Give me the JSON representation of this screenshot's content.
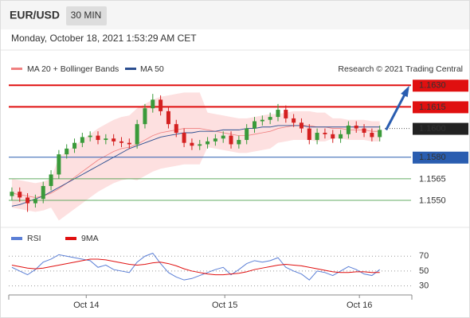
{
  "header": {
    "symbol": "EUR/USD",
    "timeframe": "30 MIN",
    "timestamp": "Monday, October 18, 2021 1:53:29 AM CET"
  },
  "chart_data": {
    "type": "candlestick",
    "credit": "Research © 2021 Trading Central",
    "up_color": "#3a9a3a",
    "down_color": "#d42020",
    "ylim": [
      1.1534,
      1.1639
    ],
    "xlim": [
      -0.4,
      51
    ],
    "xticks": [
      {
        "value": 9.5,
        "label": "Oct 14"
      },
      {
        "value": 27.2,
        "label": "Oct 15"
      },
      {
        "value": 44.4,
        "label": "Oct 16"
      }
    ],
    "levels": [
      {
        "value": 1.163,
        "label": "1.1630",
        "color": "#e01010",
        "style": "box"
      },
      {
        "value": 1.1615,
        "label": "1.1615",
        "color": "#e01010",
        "style": "box"
      },
      {
        "value": 1.16,
        "label": "1.1600",
        "color": "#222222",
        "style": "current"
      },
      {
        "value": 1.158,
        "label": "1.1580",
        "color": "#2a5db0",
        "style": "box"
      },
      {
        "value": 1.1565,
        "label": "1.1565",
        "color": "#3f9a3f",
        "style": "text"
      },
      {
        "value": 1.155,
        "label": "1.1550",
        "color": "#3f9a3f",
        "style": "text"
      }
    ],
    "open": [
      1.1553,
      1.1556,
      1.1552,
      1.1548,
      1.1551,
      1.156,
      1.1568,
      1.1582,
      1.1586,
      1.159,
      1.1594,
      1.1595,
      1.1592,
      1.1593,
      1.1591,
      1.159,
      1.1589,
      1.1603,
      1.1614,
      1.162,
      1.1612,
      1.1603,
      1.1597,
      1.159,
      1.1588,
      1.1589,
      1.1591,
      1.1593,
      1.1595,
      1.1589,
      1.1592,
      1.16,
      1.1605,
      1.1606,
      1.1608,
      1.1613,
      1.1607,
      1.1604,
      1.16,
      1.1592,
      1.1597,
      1.1596,
      1.1593,
      1.1596,
      1.1602,
      1.16,
      1.1597,
      1.1594
    ],
    "high": [
      1.1559,
      1.1559,
      1.1555,
      1.1554,
      1.1563,
      1.1571,
      1.1585,
      1.1589,
      1.1593,
      1.1597,
      1.1598,
      1.1598,
      1.1596,
      1.1596,
      1.1594,
      1.1593,
      1.1606,
      1.1617,
      1.1624,
      1.1623,
      1.1615,
      1.1606,
      1.16,
      1.1593,
      1.1592,
      1.1594,
      1.1596,
      1.1598,
      1.1598,
      1.1595,
      1.1603,
      1.1608,
      1.1609,
      1.1611,
      1.1617,
      1.1616,
      1.161,
      1.1607,
      1.1603,
      1.16,
      1.16,
      1.1599,
      1.1599,
      1.1605,
      1.1605,
      1.1603,
      1.16,
      1.1602
    ],
    "low": [
      1.155,
      1.1549,
      1.1542,
      1.1545,
      1.1548,
      1.1557,
      1.1565,
      1.1579,
      1.1583,
      1.1587,
      1.1591,
      1.1589,
      1.1589,
      1.1588,
      1.1587,
      1.1586,
      1.1586,
      1.16,
      1.1611,
      1.1609,
      1.16,
      1.1594,
      1.1587,
      1.1585,
      1.1585,
      1.1586,
      1.1588,
      1.159,
      1.1586,
      1.1586,
      1.1589,
      1.1597,
      1.1602,
      1.1603,
      1.1605,
      1.1604,
      1.1601,
      1.1597,
      1.1589,
      1.1589,
      1.1593,
      1.159,
      1.159,
      1.1593,
      1.1597,
      1.1594,
      1.1591,
      1.1591
    ],
    "close": [
      1.1556,
      1.1552,
      1.1548,
      1.1551,
      1.156,
      1.1568,
      1.1582,
      1.1586,
      1.159,
      1.1594,
      1.1595,
      1.1592,
      1.1593,
      1.1591,
      1.159,
      1.1589,
      1.1603,
      1.1614,
      1.162,
      1.1612,
      1.1603,
      1.1597,
      1.159,
      1.1588,
      1.1589,
      1.1591,
      1.1593,
      1.1595,
      1.1589,
      1.1592,
      1.16,
      1.1605,
      1.1606,
      1.1608,
      1.1613,
      1.1607,
      1.1604,
      1.16,
      1.1592,
      1.1597,
      1.1596,
      1.1593,
      1.1596,
      1.1602,
      1.16,
      1.1597,
      1.1594,
      1.1599
    ],
    "bollinger": {
      "name": "MA 20 + Bollinger Bands",
      "color": "#f08080",
      "fill": "#fde0e0",
      "middle": [
        1.1555,
        1.1554,
        1.1553,
        1.1552,
        1.1553,
        1.1555,
        1.1558,
        1.1562,
        1.1566,
        1.157,
        1.1574,
        1.1578,
        1.1581,
        1.1584,
        1.1586,
        1.1587,
        1.1589,
        1.1592,
        1.1595,
        1.1597,
        1.1598,
        1.1599,
        1.16,
        1.16,
        1.16,
        1.1599,
        1.1598,
        1.1597,
        1.1596,
        1.1595,
        1.1595,
        1.1596,
        1.1597,
        1.1598,
        1.16,
        1.1601,
        1.1602,
        1.1602,
        1.1602,
        1.1601,
        1.1601,
        1.16,
        1.16,
        1.1599,
        1.1599,
        1.1599,
        1.1598,
        1.1598
      ],
      "upper": [
        1.1565,
        1.1564,
        1.1563,
        1.1562,
        1.1563,
        1.1565,
        1.158,
        1.1584,
        1.1588,
        1.1592,
        1.1596,
        1.16,
        1.1603,
        1.1606,
        1.1608,
        1.1609,
        1.1614,
        1.1617,
        1.162,
        1.1622,
        1.1623,
        1.1624,
        1.1625,
        1.1625,
        1.1625,
        1.1611,
        1.161,
        1.1609,
        1.1608,
        1.1607,
        1.1607,
        1.1608,
        1.1609,
        1.161,
        1.161,
        1.1611,
        1.1612,
        1.1612,
        1.1612,
        1.1611,
        1.1611,
        1.1607,
        1.1607,
        1.1606,
        1.1606,
        1.1606,
        1.1605,
        1.1605
      ],
      "lower": [
        1.1545,
        1.1544,
        1.1543,
        1.1542,
        1.1543,
        1.1545,
        1.1536,
        1.154,
        1.1544,
        1.1548,
        1.1552,
        1.1556,
        1.1559,
        1.1562,
        1.1564,
        1.1565,
        1.1564,
        1.1567,
        1.157,
        1.1572,
        1.1573,
        1.1574,
        1.1575,
        1.1575,
        1.1575,
        1.1587,
        1.1586,
        1.1585,
        1.1584,
        1.1583,
        1.1583,
        1.1584,
        1.1585,
        1.1586,
        1.159,
        1.1591,
        1.1592,
        1.1592,
        1.1592,
        1.1591,
        1.1591,
        1.1593,
        1.1593,
        1.1592,
        1.1592,
        1.1592,
        1.1591,
        1.1591
      ]
    },
    "ma50": {
      "name": "MA 50",
      "color": "#2a4d8f",
      "values": [
        1.1546,
        1.1547,
        1.1549,
        1.1551,
        1.1553,
        1.1556,
        1.1559,
        1.1562,
        1.1565,
        1.1568,
        1.1571,
        1.1574,
        1.1577,
        1.158,
        1.1583,
        1.1586,
        1.1588,
        1.159,
        1.1592,
        1.1594,
        1.1595,
        1.1596,
        1.1597,
        1.1597,
        1.1598,
        1.1598,
        1.1598,
        1.1599,
        1.1599,
        1.1599,
        1.16,
        1.16,
        1.1601,
        1.1601,
        1.1602,
        1.1602,
        1.1602,
        1.1602,
        1.1601,
        1.1601,
        1.1601,
        1.1601,
        1.1601,
        1.1601,
        1.1601,
        1.1601,
        1.1601,
        1.1601
      ]
    },
    "rsi": {
      "ylim": [
        20,
        82
      ],
      "yticks": [
        70,
        50,
        30
      ],
      "series": [
        {
          "name": "RSI",
          "color": "#5b7fd6",
          "values": [
            55,
            50,
            45,
            52,
            62,
            66,
            72,
            70,
            68,
            66,
            64,
            55,
            58,
            52,
            50,
            48,
            62,
            70,
            74,
            60,
            48,
            42,
            38,
            40,
            44,
            48,
            52,
            55,
            45,
            52,
            60,
            64,
            62,
            64,
            68,
            55,
            50,
            46,
            38,
            50,
            48,
            44,
            50,
            56,
            52,
            46,
            44,
            52
          ]
        },
        {
          "name": "9MA",
          "color": "#e01010",
          "values": [
            58,
            56,
            54,
            53,
            54,
            56,
            58,
            60,
            62,
            64,
            66,
            66,
            65,
            63,
            61,
            59,
            58,
            59,
            61,
            62,
            60,
            57,
            53,
            50,
            48,
            46,
            45,
            45,
            46,
            47,
            49,
            52,
            54,
            56,
            58,
            59,
            58,
            57,
            55,
            53,
            51,
            49,
            48,
            48,
            49,
            49,
            48,
            48
          ]
        }
      ]
    }
  }
}
